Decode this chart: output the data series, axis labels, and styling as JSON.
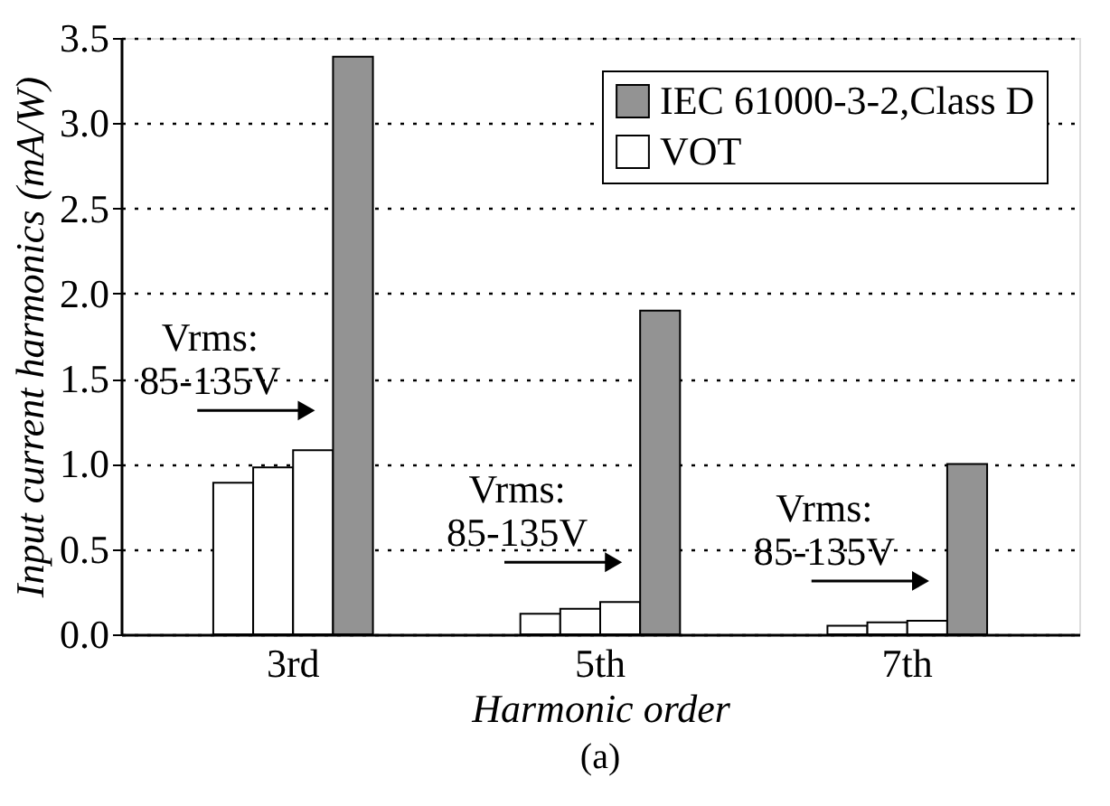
{
  "chart_data": {
    "type": "bar",
    "xlabel": "Harmonic order",
    "ylabel": "Input current harmonics (mA/W)",
    "categories": [
      "3rd",
      "5th",
      "7th"
    ],
    "series": [
      {
        "name": "VOT",
        "color": "#ffffff",
        "values": [
          0.89,
          0.12,
          0.05
        ]
      },
      {
        "color": "#ffffff",
        "values": [
          0.98,
          0.15,
          0.07
        ]
      },
      {
        "color": "#ffffff",
        "values": [
          1.08,
          0.19,
          0.08
        ]
      },
      {
        "name": "IEC 61000-3-2,Class D",
        "color": "#939393",
        "values": [
          3.39,
          1.9,
          1.0
        ]
      }
    ],
    "ylim": [
      0,
      3.5
    ],
    "yticks": [
      {
        "value": 0,
        "label": "0.0"
      },
      {
        "value": 0.5,
        "label": "0.5"
      },
      {
        "value": 1,
        "label": "1.0"
      },
      {
        "value": 1.5,
        "label": "1.5"
      },
      {
        "value": 2,
        "label": "2.0"
      },
      {
        "value": 2.5,
        "label": "2.5"
      },
      {
        "value": 3,
        "label": "3.0"
      },
      {
        "value": 3.5,
        "label": "3.5"
      }
    ],
    "grid": "y",
    "legend": "top right",
    "annotations": [
      "Vrms: 85-135V",
      "Vrms: 85-135V",
      "Vrms: 85-135V",
      "(a)"
    ]
  }
}
